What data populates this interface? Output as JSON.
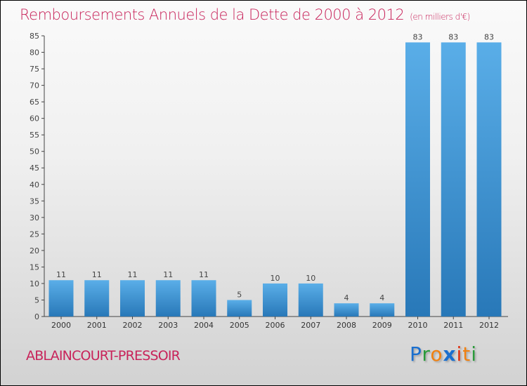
{
  "title": "Remboursements Annuels de la Dette de 2000 à 2012",
  "unit": "(en milliers d'€)",
  "town": "ABLAINCOURT-PRESSOIR",
  "logo": "Proxiti",
  "colors": {
    "bar_top": "#5aaee8",
    "bar_bottom": "#2878b8",
    "title": "#c8235a"
  },
  "chart_data": {
    "type": "bar",
    "title": "Remboursements Annuels de la Dette de 2000 à 2012",
    "xlabel": "",
    "ylabel": "",
    "categories": [
      "2000",
      "2001",
      "2002",
      "2003",
      "2004",
      "2005",
      "2006",
      "2007",
      "2008",
      "2009",
      "2010",
      "2011",
      "2012"
    ],
    "values": [
      11,
      11,
      11,
      11,
      11,
      5,
      10,
      10,
      4,
      4,
      83,
      83,
      83
    ],
    "ylim": [
      0,
      85
    ],
    "yticks": [
      0,
      5,
      10,
      15,
      20,
      25,
      30,
      35,
      40,
      45,
      50,
      55,
      60,
      65,
      70,
      75,
      80,
      85
    ]
  }
}
